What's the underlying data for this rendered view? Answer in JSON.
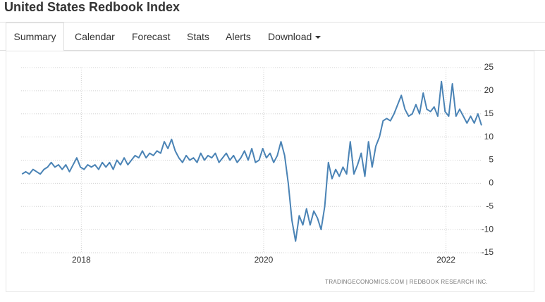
{
  "header": {
    "title": "United States Redbook Index"
  },
  "tabs": [
    "Summary",
    "Calendar",
    "Forecast",
    "Stats",
    "Alerts",
    "Download"
  ],
  "chart_data": {
    "type": "line",
    "x": [
      2017.35,
      2017.39,
      2017.43,
      2017.47,
      2017.51,
      2017.55,
      2017.59,
      2017.63,
      2017.67,
      2017.71,
      2017.75,
      2017.79,
      2017.83,
      2017.87,
      2017.91,
      2017.95,
      2017.99,
      2018.03,
      2018.07,
      2018.11,
      2018.15,
      2018.19,
      2018.23,
      2018.27,
      2018.31,
      2018.35,
      2018.39,
      2018.43,
      2018.47,
      2018.51,
      2018.55,
      2018.59,
      2018.63,
      2018.67,
      2018.71,
      2018.75,
      2018.79,
      2018.83,
      2018.87,
      2018.91,
      2018.95,
      2018.99,
      2019.03,
      2019.07,
      2019.11,
      2019.15,
      2019.19,
      2019.23,
      2019.27,
      2019.31,
      2019.35,
      2019.39,
      2019.43,
      2019.47,
      2019.51,
      2019.55,
      2019.59,
      2019.63,
      2019.67,
      2019.71,
      2019.75,
      2019.79,
      2019.83,
      2019.87,
      2019.91,
      2019.95,
      2019.99,
      2020.03,
      2020.07,
      2020.11,
      2020.15,
      2020.19,
      2020.23,
      2020.27,
      2020.31,
      2020.35,
      2020.39,
      2020.43,
      2020.47,
      2020.51,
      2020.55,
      2020.59,
      2020.63,
      2020.67,
      2020.71,
      2020.75,
      2020.79,
      2020.83,
      2020.87,
      2020.91,
      2020.95,
      2020.99,
      2021.03,
      2021.07,
      2021.11,
      2021.15,
      2021.19,
      2021.23,
      2021.27,
      2021.31,
      2021.35,
      2021.39,
      2021.43,
      2021.47,
      2021.51,
      2021.55,
      2021.59,
      2021.63,
      2021.67,
      2021.71,
      2021.75,
      2021.79,
      2021.83,
      2021.87,
      2021.91,
      2021.95,
      2021.99,
      2022.03,
      2022.07,
      2022.11,
      2022.15,
      2022.19,
      2022.23,
      2022.27,
      2022.31,
      2022.35,
      2022.39
    ],
    "values": [
      2,
      2.5,
      2,
      3,
      2.5,
      2,
      3,
      3.5,
      4.5,
      3.5,
      4,
      3,
      4,
      2.5,
      4,
      5.5,
      3.5,
      3,
      4,
      3.5,
      4,
      3,
      4.5,
      3.5,
      4.5,
      3,
      5,
      4,
      5.5,
      4,
      5,
      6,
      5.5,
      7,
      5.5,
      6.5,
      6,
      7,
      6.5,
      9,
      7.5,
      9.5,
      7,
      5.5,
      4.5,
      6,
      5,
      5.5,
      4.5,
      6.5,
      5,
      6,
      5.5,
      6.5,
      4.5,
      5.5,
      6.5,
      5,
      6,
      4.5,
      5.5,
      7,
      5,
      7.5,
      4.5,
      5,
      7.5,
      5.5,
      6.5,
      4.5,
      6,
      9,
      6,
      0,
      -8,
      -12.5,
      -7,
      -9,
      -5.5,
      -9,
      -6,
      -7.5,
      -10,
      -5,
      4.5,
      1,
      3,
      1.5,
      3.5,
      2,
      9,
      2,
      4,
      6.5,
      1.5,
      9,
      3.5,
      8,
      10,
      13.5,
      14,
      13.5,
      15,
      17,
      19,
      16,
      14.5,
      15,
      17,
      15,
      19.5,
      16,
      15.5,
      16.5,
      14.5,
      22,
      15.5,
      14.5,
      21.5,
      14.5,
      16,
      14.5,
      13,
      14.5,
      13,
      15,
      12.5
    ],
    "color": "#4a83b5",
    "xlim": [
      2017.34,
      2022.39
    ],
    "xticks": [
      2018,
      2020,
      2022
    ],
    "ylim": [
      -15,
      25
    ],
    "yticks": [
      25,
      20,
      15,
      10,
      5,
      0,
      -5,
      -10,
      -15
    ],
    "grid": true,
    "source": "TRADINGECONOMICS.COM  |  REDBOOK RESEARCH INC."
  }
}
